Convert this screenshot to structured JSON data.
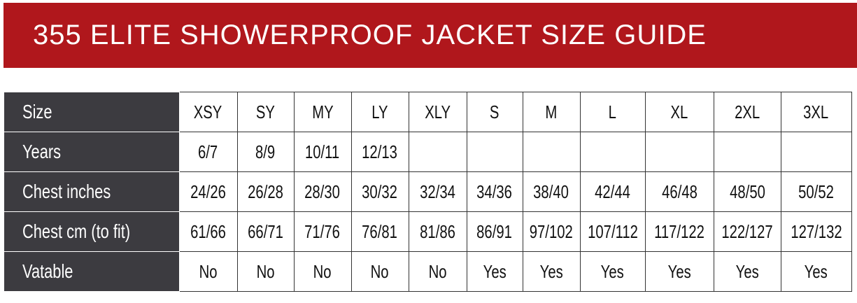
{
  "title": "355 ELITE SHOWERPROOF JACKET SIZE GUIDE",
  "rows": [
    {
      "label": "Size",
      "cells": [
        "XSY",
        "SY",
        "MY",
        "LY",
        "XLY",
        "S",
        "M",
        "L",
        "XL",
        "2XL",
        "3XL"
      ]
    },
    {
      "label": "Years",
      "cells": [
        "6/7",
        "8/9",
        "10/11",
        "12/13",
        "",
        "",
        "",
        "",
        "",
        "",
        ""
      ]
    },
    {
      "label": "Chest inches",
      "cells": [
        "24/26",
        "26/28",
        "28/30",
        "30/32",
        "32/34",
        "34/36",
        "38/40",
        "42/44",
        "46/48",
        "48/50",
        "50/52"
      ]
    },
    {
      "label": "Chest cm (to fit)",
      "cells": [
        "61/66",
        "66/71",
        "71/76",
        "76/81",
        "81/86",
        "86/91",
        "97/102",
        "107/112",
        "117/122",
        "122/127",
        "127/132"
      ]
    },
    {
      "label": "Vatable",
      "cells": [
        "No",
        "No",
        "No",
        "No",
        "No",
        "Yes",
        "Yes",
        "Yes",
        "Yes",
        "Yes",
        "Yes"
      ]
    }
  ],
  "colors": {
    "banner": "#b0171c",
    "label_bg": "#3c3b40"
  }
}
